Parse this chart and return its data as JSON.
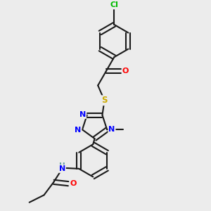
{
  "background_color": "#ececec",
  "bond_color": "#1a1a1a",
  "atom_colors": {
    "N": "#0000ff",
    "O": "#ff0000",
    "S": "#ccaa00",
    "Cl": "#00bb00",
    "H": "#5f9ea0",
    "C": "#1a1a1a"
  },
  "figsize": [
    3.0,
    3.0
  ],
  "dpi": 100
}
